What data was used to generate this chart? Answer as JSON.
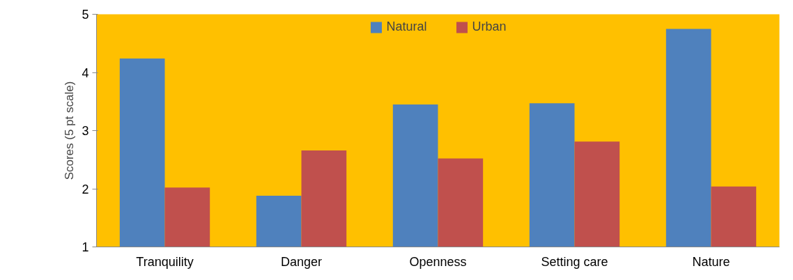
{
  "chart_data": {
    "type": "bar",
    "ylabel": "Scores (5 pt scale)",
    "categories": [
      "Tranquility",
      "Danger",
      "Openness",
      "Setting care",
      "Nature"
    ],
    "series": [
      {
        "name": "Natural",
        "color": "#4f81bd",
        "values": [
          4.24,
          1.88,
          3.45,
          3.47,
          4.75
        ]
      },
      {
        "name": "Urban",
        "color": "#c0504d",
        "values": [
          2.02,
          2.66,
          2.52,
          2.81,
          2.04
        ]
      }
    ],
    "ylim": [
      1,
      5
    ],
    "yticks": [
      1,
      2,
      3,
      4,
      5
    ],
    "grid": false,
    "legend": "top"
  }
}
